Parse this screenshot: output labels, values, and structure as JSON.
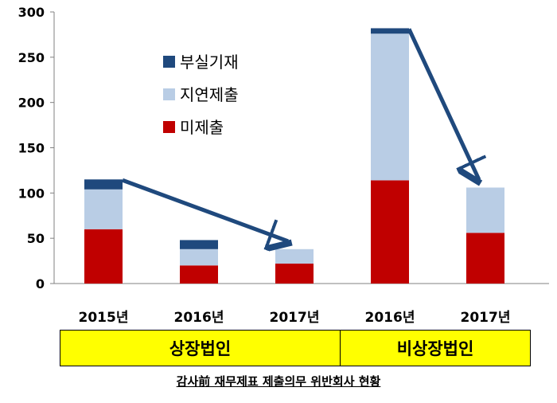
{
  "chart_data": {
    "type": "bar",
    "stacked": true,
    "categories": [
      "2015년",
      "2016년",
      "2017년",
      "2016년",
      "2017년"
    ],
    "groups": [
      {
        "label": "상장법인",
        "categories": [
          0,
          1,
          2
        ]
      },
      {
        "label": "비상장법인",
        "categories": [
          3,
          4
        ]
      }
    ],
    "series": [
      {
        "name": "미제출",
        "color": "#c00000",
        "values": [
          60,
          20,
          22,
          114,
          56
        ]
      },
      {
        "name": "지연제출",
        "color": "#b9cde5",
        "values": [
          44,
          18,
          16,
          162,
          50
        ]
      },
      {
        "name": "부실기재",
        "color": "#1f497d",
        "values": [
          11,
          10,
          0,
          6,
          0
        ]
      }
    ],
    "ylim": [
      0,
      300
    ],
    "yticks": [
      0,
      50,
      100,
      150,
      200,
      250,
      300
    ],
    "legend_position": "upper-left inside plot",
    "annotations": [
      {
        "type": "arrow",
        "from_category": 0,
        "to_category": 2,
        "color": "#1f497d"
      },
      {
        "type": "arrow",
        "from_category": 3,
        "to_category": 4,
        "color": "#1f497d"
      }
    ]
  },
  "caption": "감사前 재무제표 제출의무 위반회사 현황"
}
